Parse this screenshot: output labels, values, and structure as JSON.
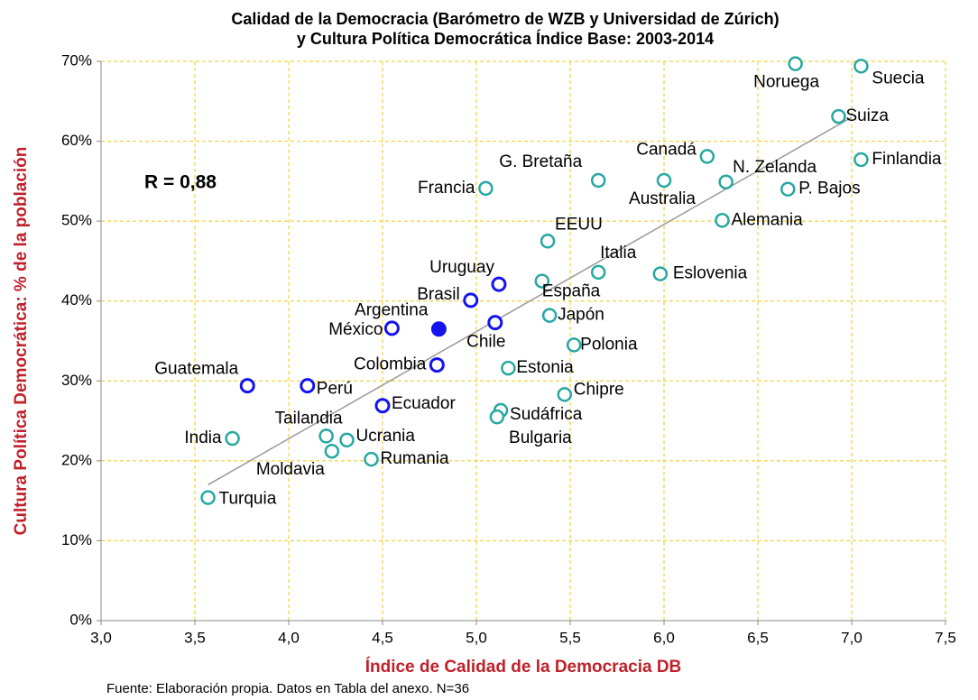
{
  "chart_data": {
    "type": "scatter",
    "title": "Calidad de la Democracia (Barómetro de WZB y Universidad de Zúrich)",
    "subtitle": "y Cultura Política Democrática Índice Base: 2003-2014",
    "x_label": "Índice de Calidad de la Democracia DB",
    "y_label": "Cultura Política Democrática: % de la población",
    "annotation": "R = 0,88",
    "source": "Fuente: Elaboración propia. Datos en Tabla del anexo. N=36",
    "labels": [
      "Turquia",
      "India",
      "Guatemala",
      "Perú",
      "Tailandia",
      "Moldavia",
      "Ucrania",
      "Rumania",
      "Ecuador",
      "México",
      "Argentina",
      "Colombia",
      "Brasil",
      "Uruguay",
      "Chile",
      "Francia",
      "Sudáfrica",
      "Bulgaria",
      "Estonia",
      "España",
      "Japón",
      "EEUU",
      "Chipre",
      "Polonia",
      "Italia",
      "G. Bretaña",
      "Eslovenia",
      "Australia",
      "Canadá",
      "Alemania",
      "N. Zelanda",
      "P. Bajos",
      "Noruega",
      "Suiza",
      "Suecia",
      "Finlandia"
    ],
    "x": [
      3.57,
      3.7,
      3.78,
      4.1,
      4.2,
      4.23,
      4.31,
      4.44,
      4.5,
      4.55,
      4.8,
      4.79,
      4.97,
      5.12,
      5.1,
      5.05,
      5.13,
      5.11,
      5.17,
      5.35,
      5.39,
      5.38,
      5.47,
      5.52,
      5.65,
      5.65,
      5.98,
      6.0,
      6.23,
      6.31,
      6.33,
      6.66,
      6.7,
      6.93,
      7.05,
      7.05
    ],
    "values": [
      15.4,
      22.8,
      29.4,
      29.4,
      23.1,
      21.2,
      22.6,
      20.2,
      26.9,
      36.6,
      36.5,
      32.0,
      40.1,
      42.1,
      37.3,
      54.1,
      26.3,
      25.5,
      31.6,
      42.5,
      38.2,
      47.5,
      28.3,
      34.5,
      43.6,
      55.1,
      43.4,
      55.1,
      58.1,
      50.1,
      54.9,
      54.0,
      69.7,
      63.1,
      69.4,
      57.7
    ],
    "colors": [
      "#25a8a0",
      "#25a8a0",
      "#1414f0",
      "#1414f0",
      "#25a8a0",
      "#25a8a0",
      "#25a8a0",
      "#25a8a0",
      "#1414f0",
      "#1414f0",
      "#1414f0",
      "#1414f0",
      "#1414f0",
      "#1414f0",
      "#1414f0",
      "#25a8a0",
      "#25a8a0",
      "#25a8a0",
      "#25a8a0",
      "#25a8a0",
      "#25a8a0",
      "#25a8a0",
      "#25a8a0",
      "#25a8a0",
      "#25a8a0",
      "#25a8a0",
      "#25a8a0",
      "#25a8a0",
      "#25a8a0",
      "#25a8a0",
      "#25a8a0",
      "#25a8a0",
      "#25a8a0",
      "#25a8a0",
      "#25a8a0",
      "#25a8a0"
    ],
    "filled": [
      false,
      false,
      false,
      false,
      false,
      false,
      false,
      false,
      false,
      false,
      true,
      false,
      false,
      false,
      false,
      false,
      false,
      false,
      false,
      false,
      false,
      false,
      false,
      false,
      false,
      false,
      false,
      false,
      false,
      false,
      false,
      false,
      false,
      false,
      false,
      false
    ],
    "trendline": {
      "x": [
        3.57,
        7.0
      ],
      "values": [
        17,
        63
      ],
      "color": "#999999"
    },
    "xlim": [
      3.0,
      7.5
    ],
    "xticks": [
      {
        "value": 3.0,
        "label": "3,0"
      },
      {
        "value": 3.5,
        "label": "3,5"
      },
      {
        "value": 4.0,
        "label": "4,0"
      },
      {
        "value": 4.5,
        "label": "4,5"
      },
      {
        "value": 5.0,
        "label": "5,0"
      },
      {
        "value": 5.5,
        "label": "5,5"
      },
      {
        "value": 6.0,
        "label": "6,0"
      },
      {
        "value": 6.5,
        "label": "6,5"
      },
      {
        "value": 7.0,
        "label": "7,0"
      },
      {
        "value": 7.5,
        "label": "7,5"
      }
    ],
    "ylim": [
      0,
      70
    ],
    "yticks": [
      {
        "value": 0,
        "label": "0%"
      },
      {
        "value": 10,
        "label": "10%"
      },
      {
        "value": 20,
        "label": "20%"
      },
      {
        "value": 30,
        "label": "30%"
      },
      {
        "value": 40,
        "label": "40%"
      },
      {
        "value": 50,
        "label": "50%"
      },
      {
        "value": 60,
        "label": "60%"
      },
      {
        "value": 70,
        "label": "70%"
      }
    ],
    "grid": true,
    "grid_color": "#f2c811"
  }
}
